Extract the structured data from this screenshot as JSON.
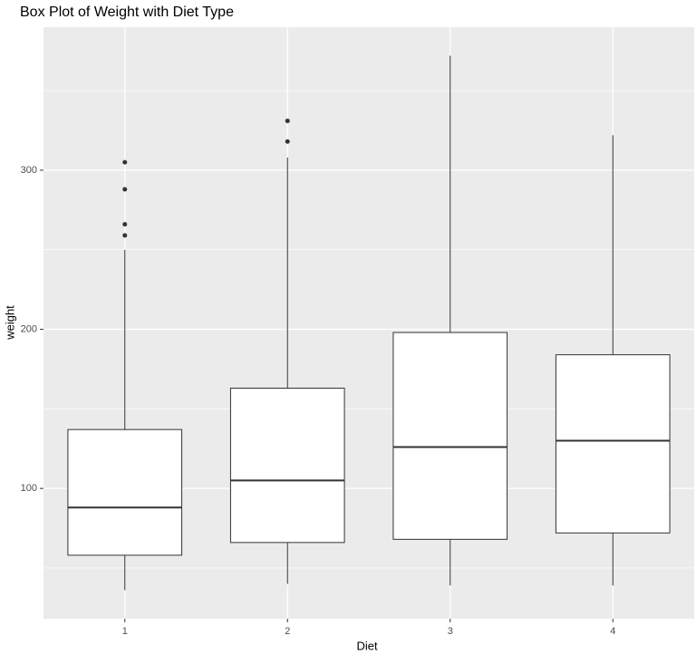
{
  "chart_data": {
    "type": "boxplot",
    "title": "Box Plot of Weight with Diet Type",
    "x_label": "Diet",
    "y_label": "weight",
    "categories": [
      "1",
      "2",
      "3",
      "4"
    ],
    "boxes": [
      {
        "min": 36,
        "q1": 58,
        "median": 88,
        "q3": 137,
        "max": 250,
        "outliers": [
          305,
          288,
          266,
          259
        ]
      },
      {
        "min": 40,
        "q1": 66,
        "median": 105,
        "q3": 163,
        "max": 308,
        "outliers": [
          331,
          318
        ]
      },
      {
        "min": 39,
        "q1": 68,
        "median": 126,
        "q3": 198,
        "max": 372,
        "outliers": []
      },
      {
        "min": 39,
        "q1": 72,
        "median": 130,
        "q3": 184,
        "max": 322,
        "outliers": []
      }
    ],
    "ylim": [
      18.1,
      389.9
    ],
    "yticks": [
      100,
      200,
      300
    ],
    "yminor": [
      50,
      150,
      250,
      350
    ],
    "grid": true,
    "panel_color": "#ebebeb",
    "box_color": "#ffffff",
    "line_color": "#333333"
  }
}
